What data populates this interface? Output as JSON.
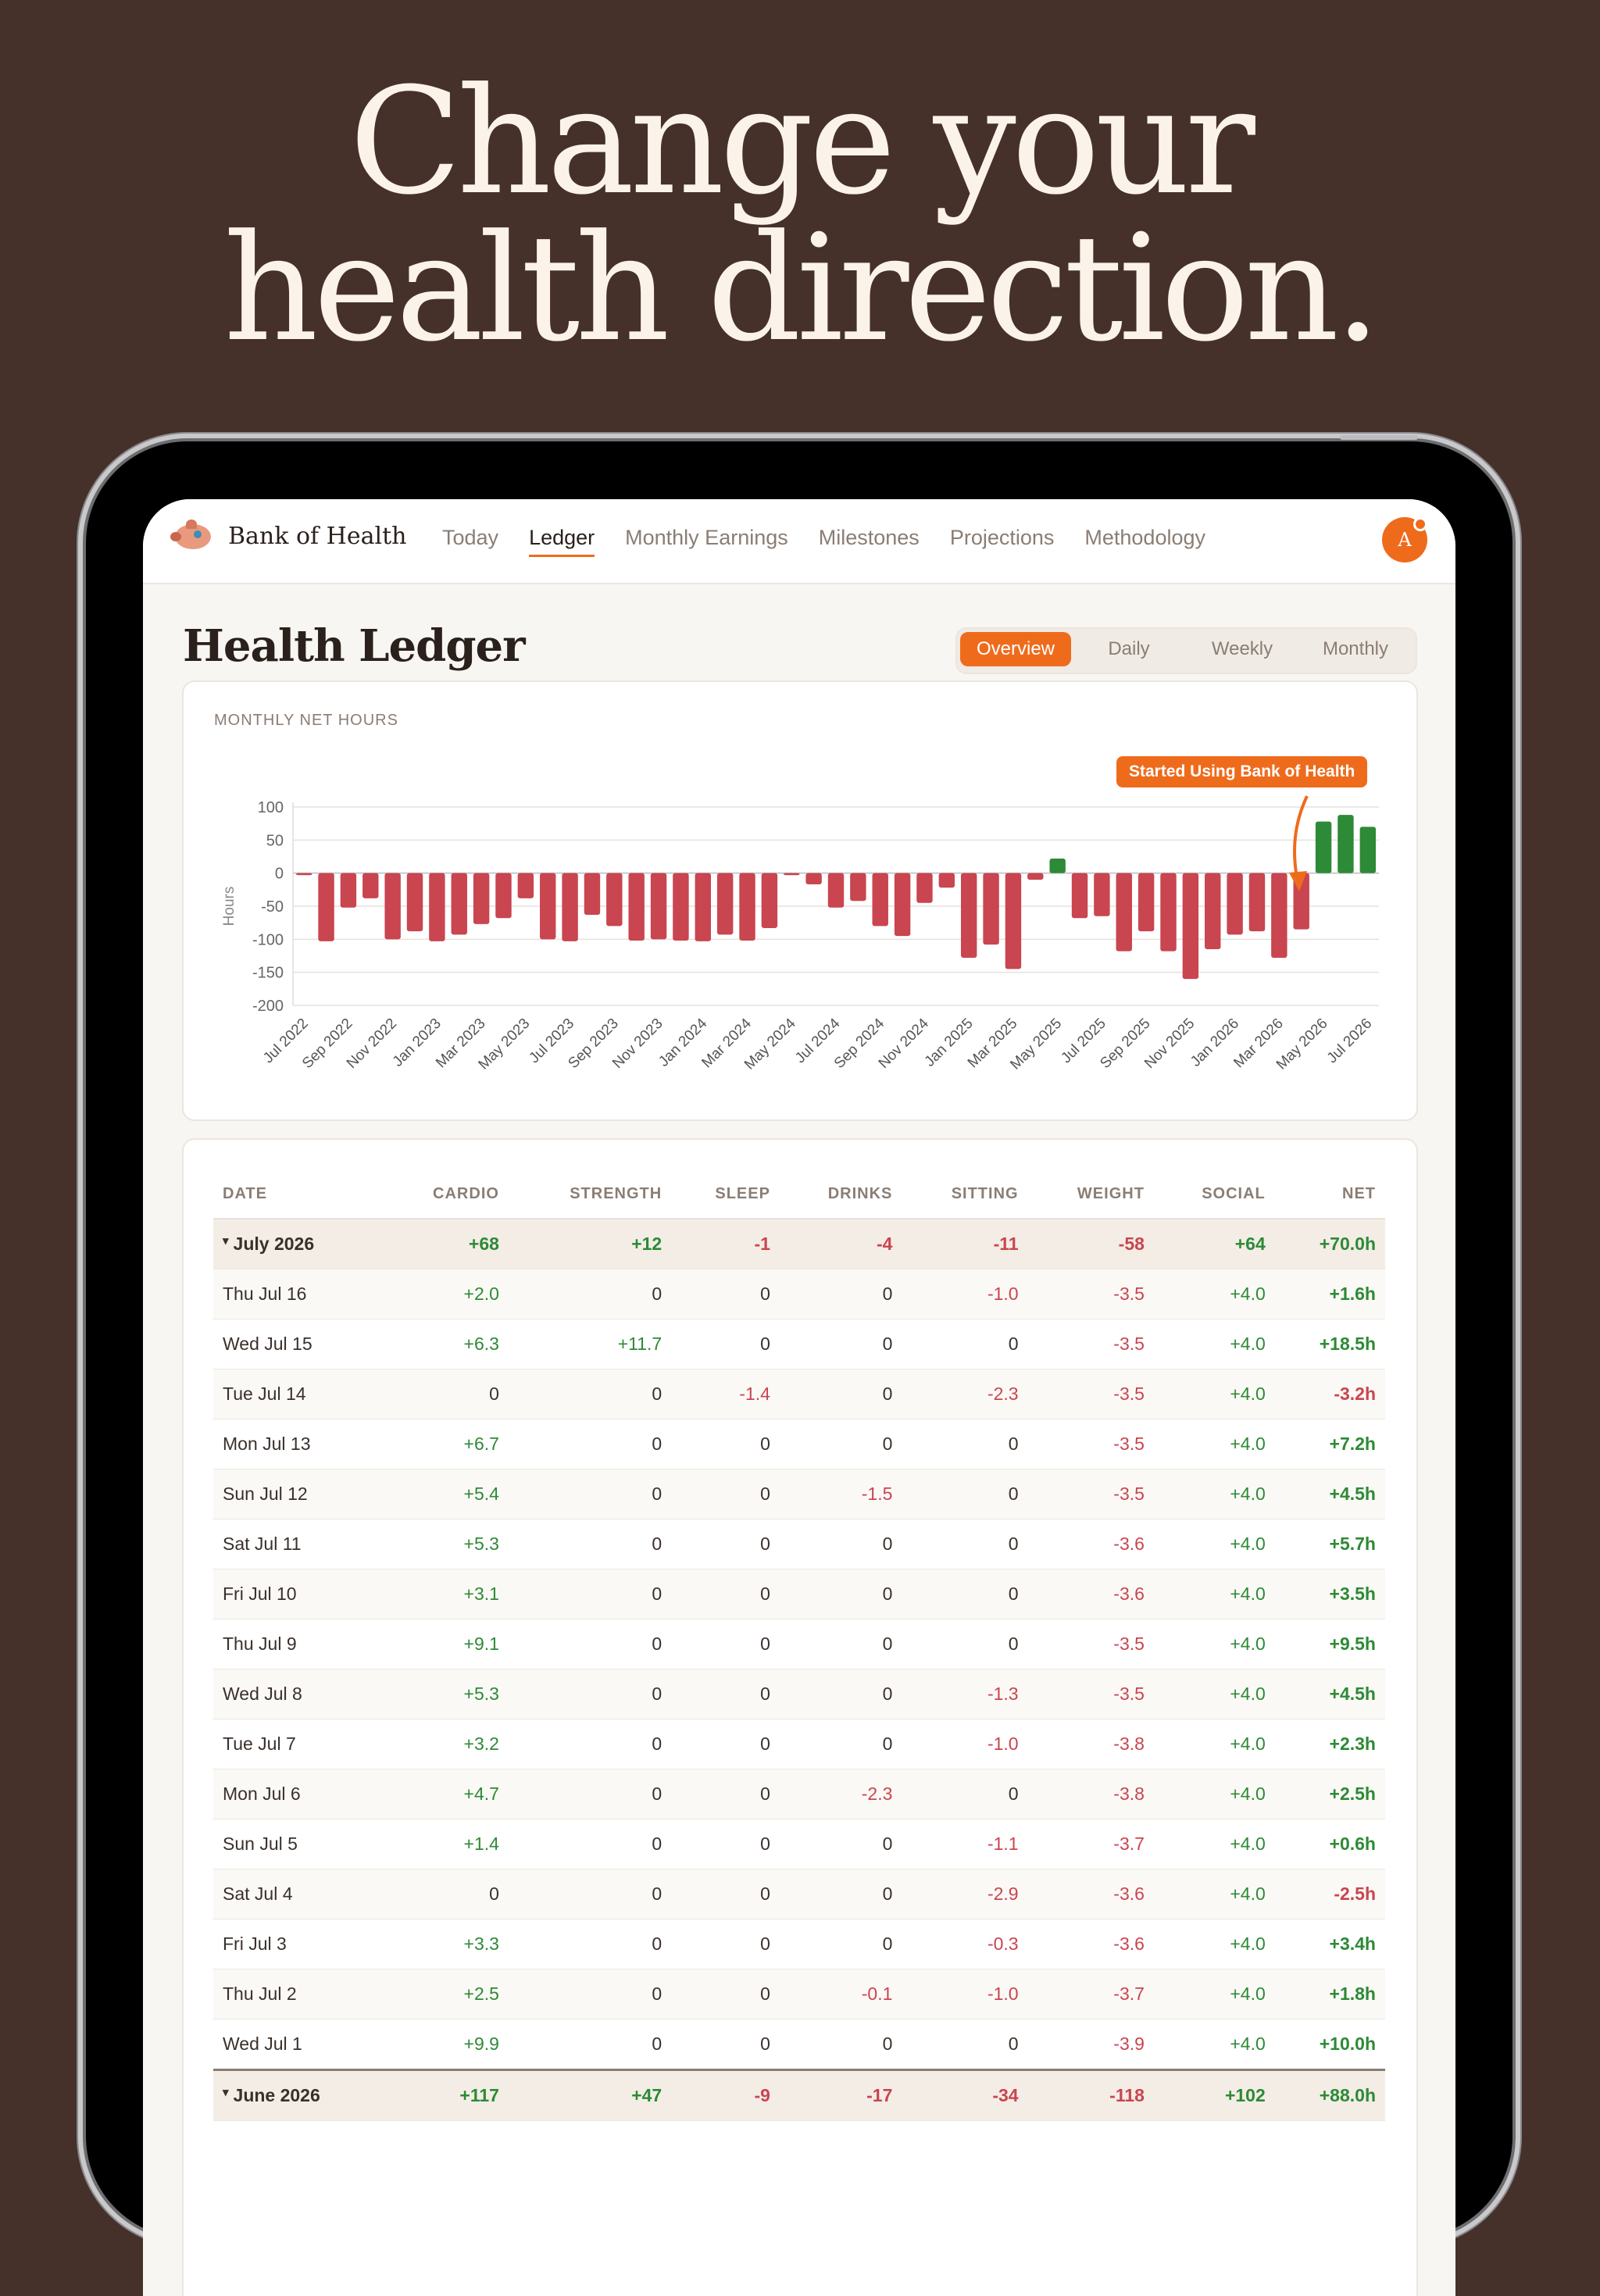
{
  "headline": {
    "line1": "Change your",
    "line2": "health direction."
  },
  "nav": {
    "brand": "Bank of Health",
    "links": [
      "Today",
      "Ledger",
      "Monthly Earnings",
      "Milestones",
      "Projections",
      "Methodology"
    ],
    "active": "Ledger",
    "avatar_initial": "A"
  },
  "page": {
    "title": "Health Ledger",
    "segments": [
      "Overview",
      "Daily",
      "Weekly",
      "Monthly"
    ],
    "active_segment": "Overview"
  },
  "colors": {
    "accent": "#ef6b1c",
    "positive": "#2d8a36",
    "negative": "#c9454f",
    "background": "#45312a"
  },
  "chart_data": {
    "type": "bar",
    "title": "MONTHLY NET HOURS",
    "ylabel": "Hours",
    "ylim": [
      -200,
      100
    ],
    "yticks": [
      100,
      50,
      0,
      -50,
      -100,
      -150,
      -200
    ],
    "annotation": "Started Using Bank of Health",
    "x_tick_labels": [
      "Jul 2022",
      "Sep 2022",
      "Nov 2022",
      "Jan 2023",
      "Mar 2023",
      "May 2023",
      "Jul 2023",
      "Sep 2023",
      "Nov 2023",
      "Jan 2024",
      "Mar 2024",
      "May 2024",
      "Jul 2024",
      "Sep 2024",
      "Nov 2024",
      "Jan 2025",
      "Mar 2025",
      "May 2025",
      "Jul 2025",
      "Sep 2025",
      "Nov 2025",
      "Jan 2026",
      "Mar 2026",
      "May 2026",
      "Jul 2026"
    ],
    "categories": [
      "Jul 2022",
      "Aug 2022",
      "Sep 2022",
      "Oct 2022",
      "Nov 2022",
      "Dec 2022",
      "Jan 2023",
      "Feb 2023",
      "Mar 2023",
      "Apr 2023",
      "May 2023",
      "Jun 2023",
      "Jul 2023",
      "Aug 2023",
      "Sep 2023",
      "Oct 2023",
      "Nov 2023",
      "Dec 2023",
      "Jan 2024",
      "Feb 2024",
      "Mar 2024",
      "Apr 2024",
      "May 2024",
      "Jun 2024",
      "Jul 2024",
      "Aug 2024",
      "Sep 2024",
      "Oct 2024",
      "Nov 2024",
      "Dec 2024",
      "Jan 2025",
      "Feb 2025",
      "Mar 2025",
      "Apr 2025",
      "May 2025",
      "Jun 2025",
      "Jul 2025",
      "Aug 2025",
      "Sep 2025",
      "Oct 2025",
      "Nov 2025",
      "Dec 2025",
      "Jan 2026",
      "Feb 2026",
      "Mar 2026",
      "Apr 2026",
      "May 2026",
      "Jun 2026",
      "Jul 2026"
    ],
    "values": [
      -3,
      -103,
      -52,
      -38,
      -100,
      -88,
      -103,
      -93,
      -77,
      -68,
      -38,
      -100,
      -103,
      -63,
      -80,
      -102,
      -100,
      -102,
      -103,
      -93,
      -102,
      -83,
      -3,
      -17,
      -52,
      -42,
      -80,
      -95,
      -45,
      -22,
      -128,
      -108,
      -145,
      -10,
      22,
      -68,
      -65,
      -118,
      -88,
      -118,
      -160,
      -115,
      -93,
      -88,
      -128,
      -85,
      78,
      88,
      70
    ]
  },
  "table": {
    "columns": [
      "DATE",
      "CARDIO",
      "STRENGTH",
      "SLEEP",
      "DRINKS",
      "SITTING",
      "WEIGHT",
      "SOCIAL",
      "NET"
    ],
    "july_summary": [
      "July 2026",
      "+68",
      "+12",
      "-1",
      "-4",
      "-11",
      "-58",
      "+64",
      "+70.0h"
    ],
    "rows": [
      [
        "Thu Jul 16",
        "+2.0",
        "0",
        "0",
        "0",
        "-1.0",
        "-3.5",
        "+4.0",
        "+1.6h"
      ],
      [
        "Wed Jul 15",
        "+6.3",
        "+11.7",
        "0",
        "0",
        "0",
        "-3.5",
        "+4.0",
        "+18.5h"
      ],
      [
        "Tue Jul 14",
        "0",
        "0",
        "-1.4",
        "0",
        "-2.3",
        "-3.5",
        "+4.0",
        "-3.2h"
      ],
      [
        "Mon Jul 13",
        "+6.7",
        "0",
        "0",
        "0",
        "0",
        "-3.5",
        "+4.0",
        "+7.2h"
      ],
      [
        "Sun Jul 12",
        "+5.4",
        "0",
        "0",
        "-1.5",
        "0",
        "-3.5",
        "+4.0",
        "+4.5h"
      ],
      [
        "Sat Jul 11",
        "+5.3",
        "0",
        "0",
        "0",
        "0",
        "-3.6",
        "+4.0",
        "+5.7h"
      ],
      [
        "Fri Jul 10",
        "+3.1",
        "0",
        "0",
        "0",
        "0",
        "-3.6",
        "+4.0",
        "+3.5h"
      ],
      [
        "Thu Jul 9",
        "+9.1",
        "0",
        "0",
        "0",
        "0",
        "-3.5",
        "+4.0",
        "+9.5h"
      ],
      [
        "Wed Jul 8",
        "+5.3",
        "0",
        "0",
        "0",
        "-1.3",
        "-3.5",
        "+4.0",
        "+4.5h"
      ],
      [
        "Tue Jul 7",
        "+3.2",
        "0",
        "0",
        "0",
        "-1.0",
        "-3.8",
        "+4.0",
        "+2.3h"
      ],
      [
        "Mon Jul 6",
        "+4.7",
        "0",
        "0",
        "-2.3",
        "0",
        "-3.8",
        "+4.0",
        "+2.5h"
      ],
      [
        "Sun Jul 5",
        "+1.4",
        "0",
        "0",
        "0",
        "-1.1",
        "-3.7",
        "+4.0",
        "+0.6h"
      ],
      [
        "Sat Jul 4",
        "0",
        "0",
        "0",
        "0",
        "-2.9",
        "-3.6",
        "+4.0",
        "-2.5h"
      ],
      [
        "Fri Jul 3",
        "+3.3",
        "0",
        "0",
        "0",
        "-0.3",
        "-3.6",
        "+4.0",
        "+3.4h"
      ],
      [
        "Thu Jul 2",
        "+2.5",
        "0",
        "0",
        "-0.1",
        "-1.0",
        "-3.7",
        "+4.0",
        "+1.8h"
      ],
      [
        "Wed Jul 1",
        "+9.9",
        "0",
        "0",
        "0",
        "0",
        "-3.9",
        "+4.0",
        "+10.0h"
      ]
    ],
    "june_summary": [
      "June 2026",
      "+117",
      "+47",
      "-9",
      "-17",
      "-34",
      "-118",
      "+102",
      "+88.0h"
    ]
  }
}
